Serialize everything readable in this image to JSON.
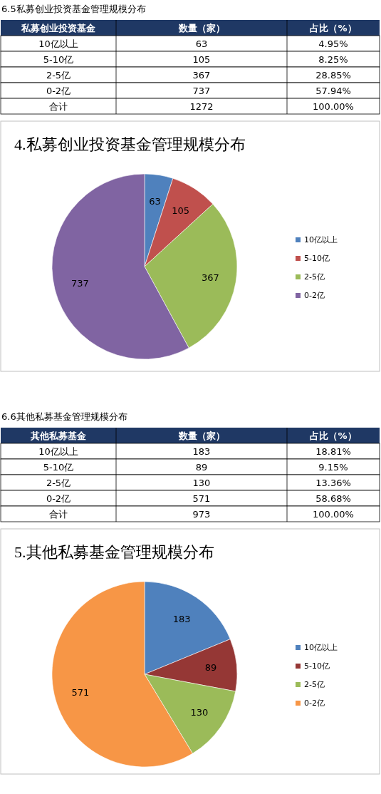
{
  "chart_data": [
    {
      "type": "other",
      "title": "6.5私募创业投资基金管理规模分布",
      "xlabel": "私募创业投资基金",
      "categories": [
        "10亿以上",
        "5-10亿",
        "2-5亿",
        "0-2亿",
        "合计"
      ],
      "data_labels": true,
      "series": [
        {
          "name": "数量（家）",
          "values": [
            63,
            105,
            367,
            737,
            1272
          ]
        },
        {
          "name": "占比（%）",
          "values": [
            4.95,
            8.25,
            28.85,
            57.94,
            100
          ],
          "value_labels": [
            "4.95%",
            "8.25%",
            "28.85%",
            "57.94%",
            "100.00%"
          ]
        }
      ]
    },
    {
      "type": "pie",
      "title": "4.私募创业投资基金管理规模分布",
      "categories": [
        "10亿以上",
        "5-10亿",
        "2-5亿",
        "0-2亿"
      ],
      "values": [
        63,
        105,
        367,
        737
      ],
      "colors": [
        "#4f81bd",
        "#c0504d",
        "#9bbb59",
        "#8064a2"
      ],
      "data_labels": true,
      "legend": "right"
    },
    {
      "type": "other",
      "title": "6.6其他私募基金管理规模分布",
      "xlabel": "其他私募基金",
      "categories": [
        "10亿以上",
        "5-10亿",
        "2-5亿",
        "0-2亿",
        "合计"
      ],
      "data_labels": true,
      "series": [
        {
          "name": "数量（家）",
          "values": [
            183,
            89,
            130,
            571,
            973
          ]
        },
        {
          "name": "占比（%）",
          "values": [
            18.81,
            9.15,
            13.36,
            58.68,
            100
          ],
          "value_labels": [
            "18.81%",
            "9.15%",
            "13.36%",
            "58.68%",
            "100.00%"
          ]
        }
      ]
    },
    {
      "type": "pie",
      "title": "5.其他私募基金管理规模分布",
      "categories": [
        "10亿以上",
        "5-10亿",
        "2-5亿",
        "0-2亿"
      ],
      "values": [
        183,
        89,
        130,
        571
      ],
      "colors": [
        "#4f81bd",
        "#953735",
        "#9bbb59",
        "#f79646"
      ],
      "data_labels": true,
      "legend": "right"
    }
  ]
}
